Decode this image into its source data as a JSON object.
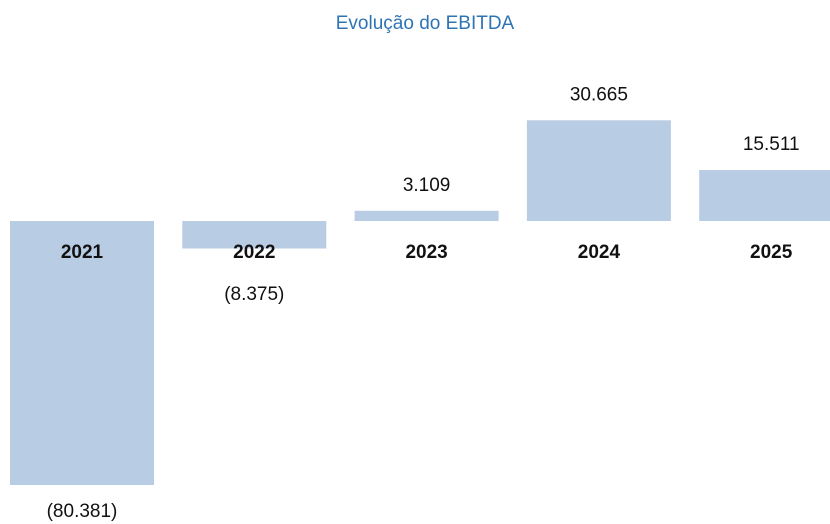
{
  "chart_data": {
    "type": "bar",
    "title": "Evolução do EBITDA",
    "categories": [
      "2021",
      "2022",
      "2023",
      "2024",
      "2025"
    ],
    "values": [
      -80381,
      -8375,
      3109,
      30665,
      15511
    ],
    "value_labels": [
      "(80.381)",
      "(8.375)",
      "3.109",
      "30.665",
      "15.511"
    ],
    "color": "#b8cce4"
  }
}
